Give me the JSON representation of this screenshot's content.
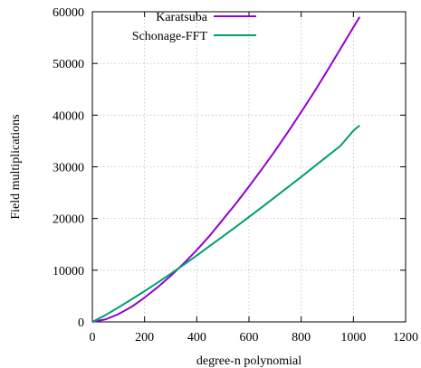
{
  "chart_data": {
    "type": "line",
    "xlabel": "degree-n polynomial",
    "ylabel": "Field multiplications",
    "xlim": [
      0,
      1200
    ],
    "ylim": [
      0,
      60000
    ],
    "xticks": [
      0,
      200,
      400,
      600,
      800,
      1000,
      1200
    ],
    "yticks": [
      0,
      10000,
      20000,
      30000,
      40000,
      50000,
      60000
    ],
    "grid": true,
    "legend_position": "top-right",
    "series": [
      {
        "name": "Karatsuba",
        "color": "#9400d3",
        "x": [
          0,
          50,
          100,
          150,
          200,
          250,
          300,
          350,
          400,
          450,
          500,
          550,
          600,
          650,
          700,
          750,
          800,
          850,
          900,
          950,
          1000,
          1024
        ],
        "y": [
          0,
          480,
          1500,
          2900,
          4700,
          6700,
          8900,
          11300,
          13900,
          16700,
          19800,
          22900,
          26200,
          29600,
          33100,
          36800,
          40600,
          44500,
          48600,
          52800,
          57000,
          59000
        ]
      },
      {
        "name": "Schonage-FFT",
        "color": "#009e73",
        "x": [
          0,
          50,
          100,
          150,
          200,
          250,
          300,
          350,
          400,
          450,
          500,
          550,
          600,
          650,
          700,
          750,
          800,
          850,
          900,
          950,
          1000,
          1024
        ],
        "y": [
          0,
          1300,
          2800,
          4350,
          5950,
          7600,
          9300,
          11050,
          12850,
          14700,
          16550,
          18400,
          20300,
          22200,
          24150,
          26100,
          28050,
          30050,
          32050,
          34050,
          37000,
          38000
        ]
      }
    ]
  }
}
